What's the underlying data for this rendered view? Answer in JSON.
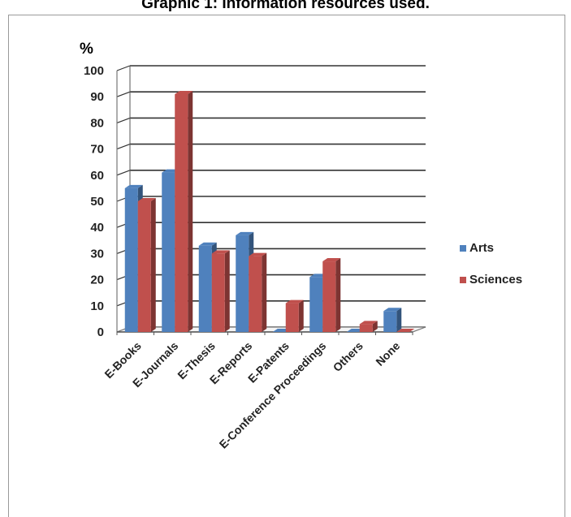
{
  "chart_data": {
    "type": "bar",
    "title": "Graphic 1: Information resources used.",
    "ylabel": "%",
    "xlabel": "",
    "ylim": [
      0,
      100
    ],
    "yticks": [
      0,
      10,
      20,
      30,
      40,
      50,
      60,
      70,
      80,
      90,
      100
    ],
    "grid": true,
    "legend": "right",
    "categories": [
      "E-Books",
      "E-Journals",
      "E-Thesis",
      "E-Reports",
      "E-Patents",
      "E-Conference Proceedings",
      "Others",
      "None"
    ],
    "series": [
      {
        "name": "Arts",
        "color": "#4f81bd",
        "values": [
          55,
          61,
          33,
          37,
          0,
          21,
          0,
          8
        ]
      },
      {
        "name": "Sciences",
        "color": "#c0504d",
        "values": [
          50,
          91,
          30,
          29,
          11,
          27,
          3,
          0
        ]
      }
    ]
  }
}
